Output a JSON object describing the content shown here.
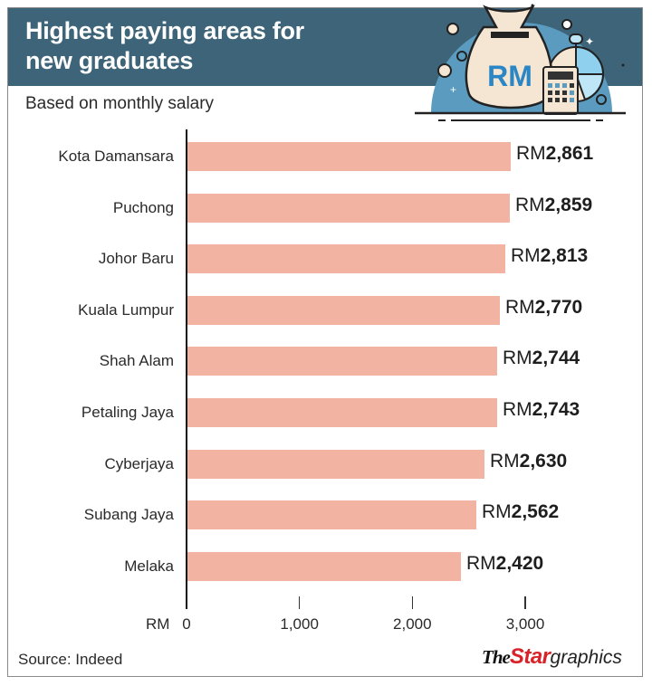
{
  "header": {
    "title_line1": "Highest paying areas for",
    "title_line2": "new graduates",
    "subtitle": "Based on monthly salary"
  },
  "illustration": {
    "icon": "money-bag-calculator-pie-chart-icon",
    "bag_text": "RM"
  },
  "colors": {
    "header_bg": "#3d6478",
    "bar": "#f2b3a3",
    "brand_red": "#d8232a",
    "illustration_blue": "#5a9bbf",
    "bag_fill": "#f5e6d3",
    "rm_text": "#2a86c5"
  },
  "chart_data": {
    "type": "bar",
    "orientation": "horizontal",
    "title": "Highest paying areas for new graduates",
    "subtitle": "Based on monthly salary",
    "categories": [
      "Kota Damansara",
      "Puchong",
      "Johor Baru",
      "Kuala Lumpur",
      "Shah Alam",
      "Petaling Jaya",
      "Cyberjaya",
      "Subang Jaya",
      "Melaka"
    ],
    "values": [
      2861,
      2859,
      2813,
      2770,
      2744,
      2743,
      2630,
      2562,
      2420
    ],
    "value_labels": [
      {
        "prefix": "RM",
        "number": "2,861"
      },
      {
        "prefix": "RM",
        "number": "2,859"
      },
      {
        "prefix": "RM",
        "number": "2,813"
      },
      {
        "prefix": "RM",
        "number": "2,770"
      },
      {
        "prefix": "RM",
        "number": "2,744"
      },
      {
        "prefix": "RM",
        "number": "2,743"
      },
      {
        "prefix": "RM",
        "number": "2,630"
      },
      {
        "prefix": "RM",
        "number": "2,562"
      },
      {
        "prefix": "RM",
        "number": "2,420"
      }
    ],
    "xlabel": "RM",
    "ylabel": "",
    "xlim": [
      0,
      3000
    ],
    "x_ticks": [
      "0",
      "1,000",
      "2,000",
      "3,000"
    ],
    "x_tick_values": [
      0,
      1000,
      2000,
      3000
    ],
    "grid": false,
    "legend": null
  },
  "footer": {
    "source": "Source: Indeed",
    "brand_the": "The",
    "brand_star": "Star",
    "brand_graphics": "graphics"
  }
}
